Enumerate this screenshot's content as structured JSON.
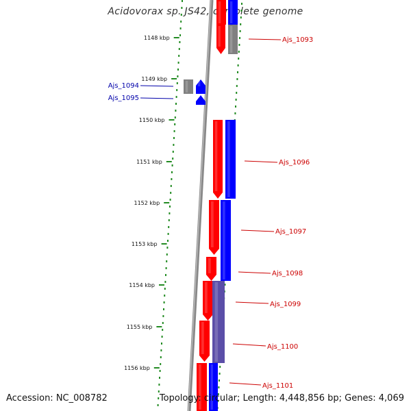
{
  "title": "Acidovorax sp. JS42, complete genome",
  "footer": {
    "accession": "Accession: NC_008782",
    "topology": "Topology: circular; Length: 4,448,856 bp; Genes: 4,069"
  },
  "colors": {
    "forward_gene": "#ff0000",
    "reverse_gene": "#0000ff",
    "pseudo_gene": "#808080",
    "forward_label": "#cc0000",
    "reverse_label": "#0000aa",
    "tick": "#228b22",
    "backbone": "#888888"
  },
  "ticks": [
    "1148 kbp",
    "1149 kbp",
    "1150 kbp",
    "1151 kbp",
    "1152 kbp",
    "1153 kbp",
    "1154 kbp",
    "1155 kbp",
    "1156 kbp"
  ],
  "gene_labels": [
    {
      "text": "Ajs_1093",
      "strand": "forward"
    },
    {
      "text": "Ajs_1094",
      "strand": "reverse"
    },
    {
      "text": "Ajs_1095",
      "strand": "reverse"
    },
    {
      "text": "Ajs_1096",
      "strand": "forward"
    },
    {
      "text": "Ajs_1097",
      "strand": "forward"
    },
    {
      "text": "Ajs_1098",
      "strand": "forward"
    },
    {
      "text": "Ajs_1099",
      "strand": "forward"
    },
    {
      "text": "Ajs_1100",
      "strand": "forward"
    },
    {
      "text": "Ajs_1101",
      "strand": "forward"
    }
  ]
}
